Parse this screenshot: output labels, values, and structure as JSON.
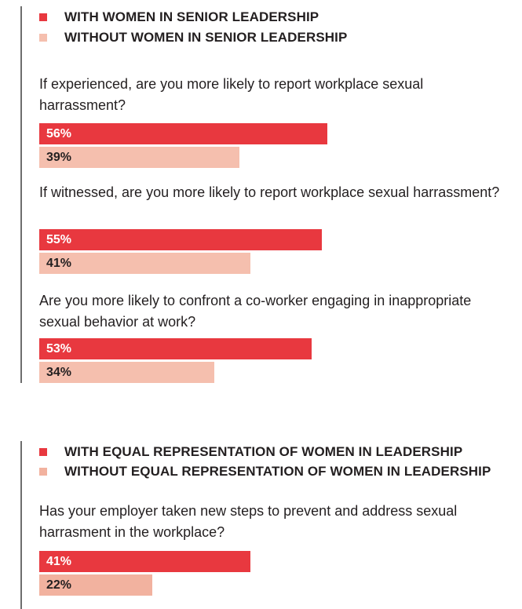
{
  "colors": {
    "with": "#e8383f",
    "without": "#f5bfae",
    "without_alt": "#f2b29f",
    "with_text": "#ffffff",
    "without_text": "#231f20",
    "rule": "#6d6d6d"
  },
  "chart_data": [
    {
      "type": "bar",
      "orientation": "horizontal",
      "title": "",
      "series": [
        {
          "name": "WITH WOMEN IN SENIOR LEADERSHIP",
          "color": "#e8383f",
          "values": [
            56,
            55,
            53
          ]
        },
        {
          "name": "WITHOUT WOMEN IN SENIOR LEADERSHIP",
          "color": "#f5bfae",
          "values": [
            39,
            41,
            34
          ]
        }
      ],
      "categories": [
        "If experienced, are you more likely to report workplace sexual harrassment?",
        "If witnessed, are you more likely to report workplace sexual harrassment?",
        "Are you more likely to confront a co-worker engaging in inappropriate sexual behavior at work?"
      ],
      "labels": [
        [
          "56%",
          "39%"
        ],
        [
          "55%",
          "41%"
        ],
        [
          "53%",
          "34%"
        ]
      ],
      "value_unit": "%",
      "xlim": [
        0,
        100
      ],
      "grid": false,
      "legend": "top-left"
    },
    {
      "type": "bar",
      "orientation": "horizontal",
      "title": "",
      "series": [
        {
          "name": "WITH EQUAL REPRESENTATION OF WOMEN IN LEADERSHIP",
          "color": "#e8383f",
          "values": [
            41
          ]
        },
        {
          "name": "WITHOUT EQUAL REPRESENTATION OF WOMEN IN LEADERSHIP",
          "color": "#f2b29f",
          "values": [
            22
          ]
        }
      ],
      "categories": [
        "Has your employer taken new steps to prevent and address sexual harrasment in the workplace?"
      ],
      "labels": [
        [
          "41%",
          "22%"
        ]
      ],
      "value_unit": "%",
      "xlim": [
        0,
        100
      ],
      "grid": false,
      "legend": "top-left"
    }
  ]
}
